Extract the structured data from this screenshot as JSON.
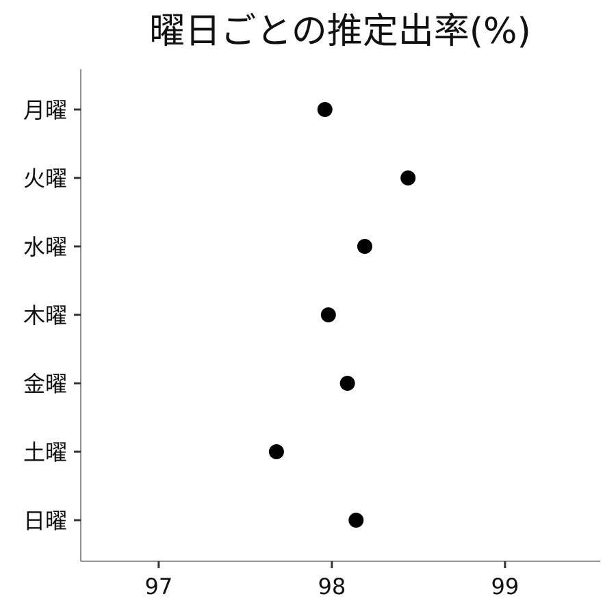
{
  "chart_data": {
    "type": "scatter",
    "title": "曜日ごとの推定出率(%)",
    "xlabel": "",
    "ylabel": "",
    "xlim": [
      96.55,
      99.55
    ],
    "x_ticks": [
      97,
      98,
      99
    ],
    "x_tick_labels": [
      "97",
      "98",
      "99"
    ],
    "categories": [
      "月曜",
      "火曜",
      "水曜",
      "木曜",
      "金曜",
      "土曜",
      "日曜"
    ],
    "values": [
      97.96,
      98.44,
      98.19,
      97.98,
      98.09,
      97.68,
      98.14
    ],
    "grid": false,
    "legend": "none",
    "colors": {
      "point": "#000000",
      "axis": "#555555",
      "text": "#111111"
    }
  }
}
